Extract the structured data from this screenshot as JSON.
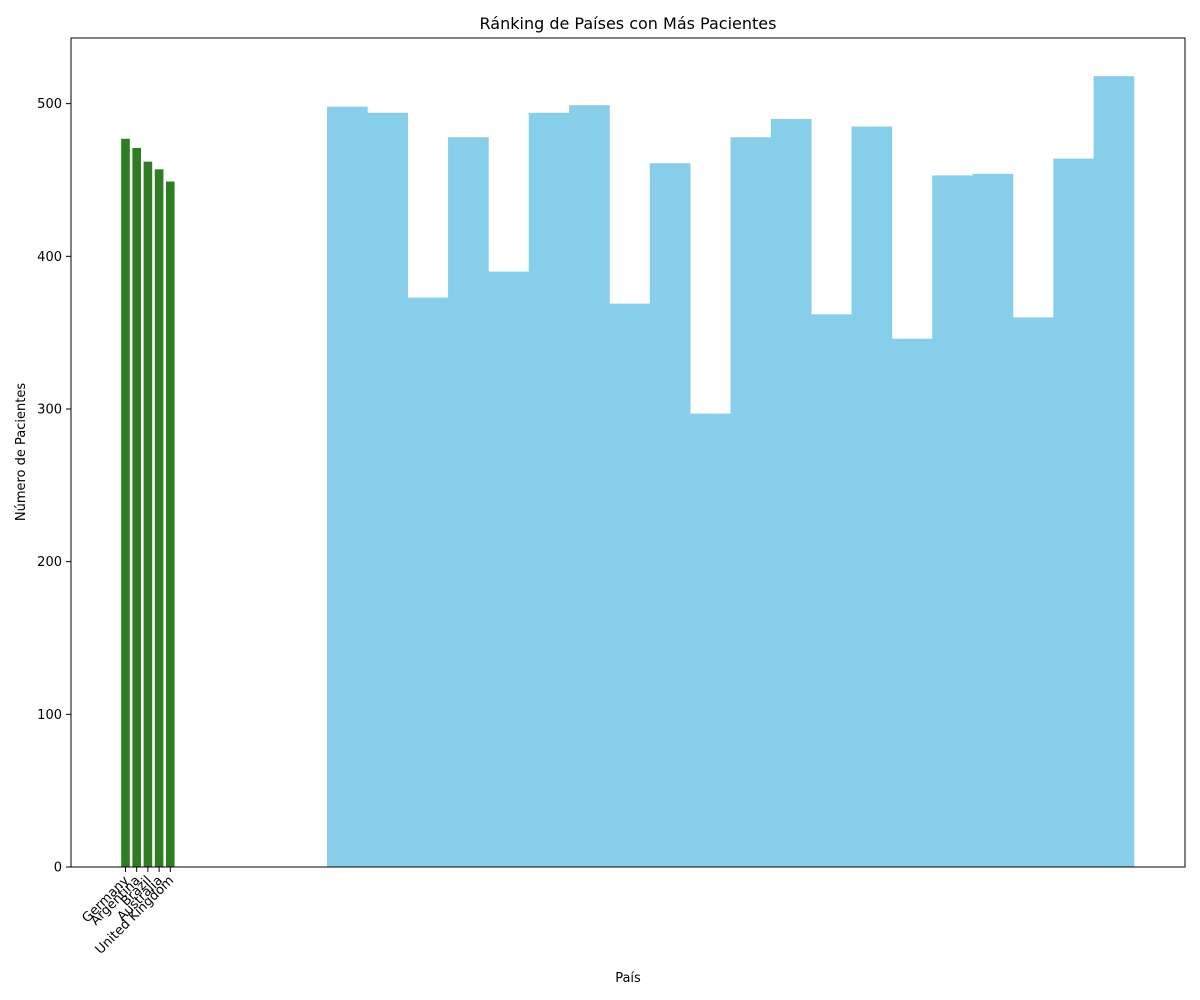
{
  "chart_data": {
    "type": "bar",
    "title": "Ránking de Países con Más Pacientes",
    "xlabel": "País",
    "ylabel": "Número de Pacientes",
    "ylim": [
      0,
      543
    ],
    "yticks": [
      0,
      100,
      200,
      300,
      400,
      500
    ],
    "grid": false,
    "legend": "none",
    "ranked_series": {
      "color": "#2e7d22",
      "categories": [
        "Germany",
        "Argentina",
        "Brazil",
        "Australia",
        "United Kingdom"
      ],
      "values": [
        477,
        471,
        462,
        457,
        449
      ]
    },
    "background_series": {
      "color": "#87ceeb",
      "values": [
        498,
        494,
        373,
        478,
        390,
        494,
        499,
        369,
        461,
        297,
        478,
        490,
        362,
        485,
        346,
        453,
        454,
        360,
        464,
        518
      ]
    }
  }
}
